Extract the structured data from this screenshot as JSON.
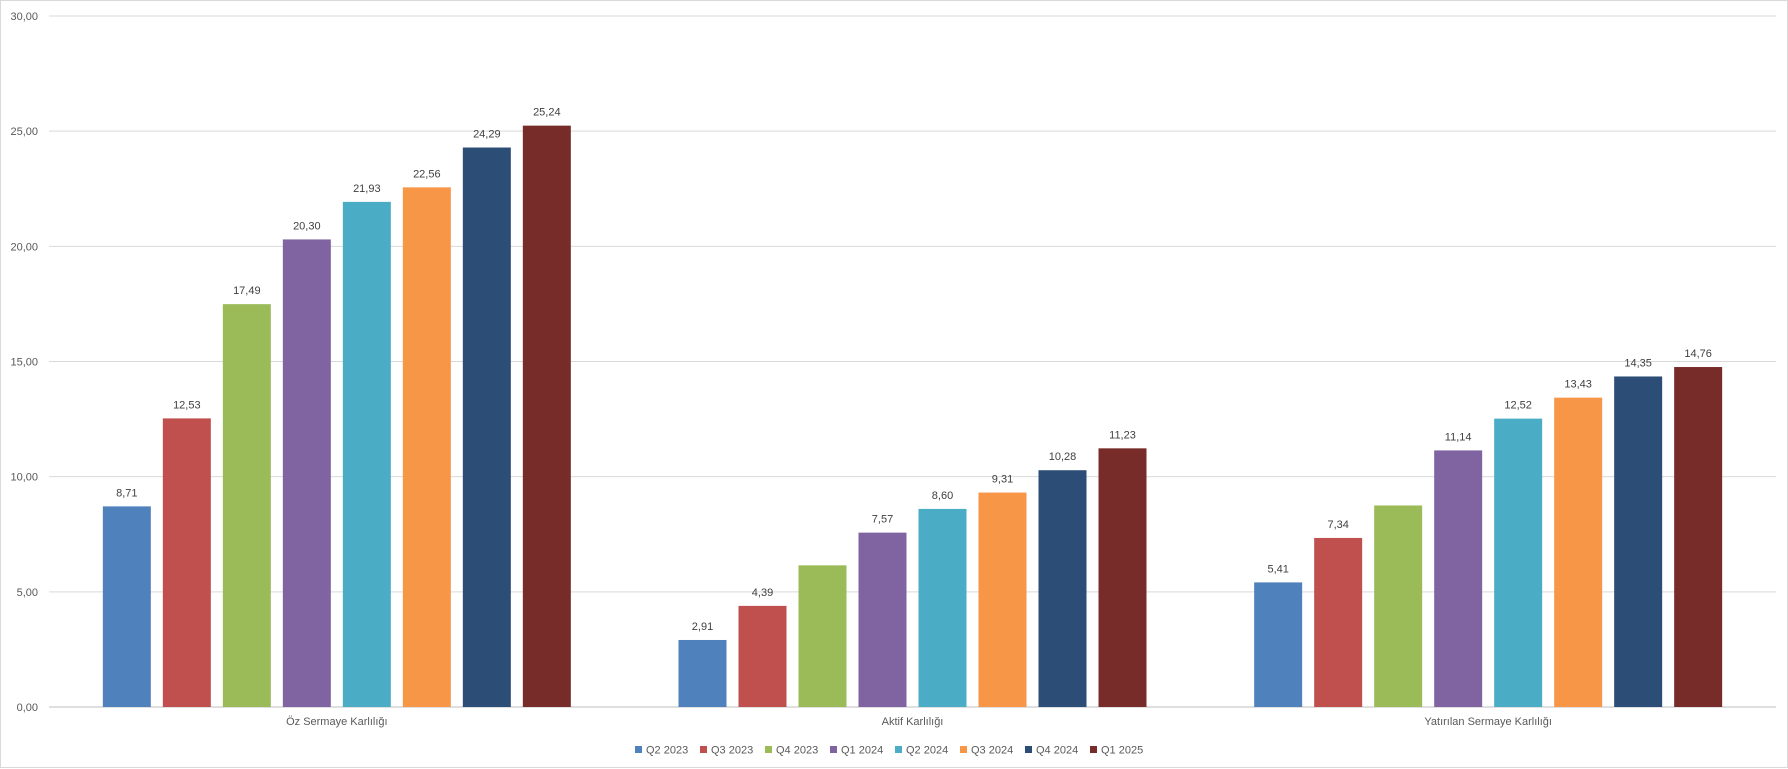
{
  "chart_data": {
    "type": "bar",
    "categories": [
      "Öz Sermaye Karlılığı",
      "Aktif Karlılığı",
      "Yatırılan Sermaye Karlılığı"
    ],
    "series": [
      {
        "name": "Q2 2023",
        "color": "#4F81BD",
        "values": [
          8.71,
          2.91,
          5.41
        ],
        "labels": [
          "8,71",
          "2,91",
          "5,41"
        ]
      },
      {
        "name": "Q3 2023",
        "color": "#C0504D",
        "values": [
          12.53,
          4.39,
          7.34
        ],
        "labels": [
          "12,53",
          "4,39",
          "7,34"
        ]
      },
      {
        "name": "Q4 2023",
        "color": "#9BBB59",
        "values": [
          17.49,
          6.15,
          8.75
        ],
        "labels": [
          "17,49",
          "",
          ""
        ]
      },
      {
        "name": "Q1 2024",
        "color": "#8064A2",
        "values": [
          20.3,
          7.57,
          11.14
        ],
        "labels": [
          "20,30",
          "7,57",
          "11,14"
        ]
      },
      {
        "name": "Q2 2024",
        "color": "#4BACC6",
        "values": [
          21.93,
          8.6,
          12.52
        ],
        "labels": [
          "21,93",
          "8,60",
          "12,52"
        ]
      },
      {
        "name": "Q3 2024",
        "color": "#F79646",
        "values": [
          22.56,
          9.31,
          13.43
        ],
        "labels": [
          "22,56",
          "9,31",
          "13,43"
        ]
      },
      {
        "name": "Q4 2024",
        "color": "#2C4D75",
        "values": [
          24.29,
          10.28,
          14.35
        ],
        "labels": [
          "24,29",
          "10,28",
          "14,35"
        ]
      },
      {
        "name": "Q1 2025",
        "color": "#772C2A",
        "values": [
          25.24,
          11.23,
          14.76
        ],
        "labels": [
          "25,24",
          "11,23",
          "14,76"
        ]
      }
    ],
    "ylim": [
      0,
      30
    ],
    "yticks": [
      "0,00",
      "5,00",
      "10,00",
      "15,00",
      "20,00",
      "25,00",
      "30,00"
    ],
    "grid": true,
    "legend_position": "bottom"
  }
}
